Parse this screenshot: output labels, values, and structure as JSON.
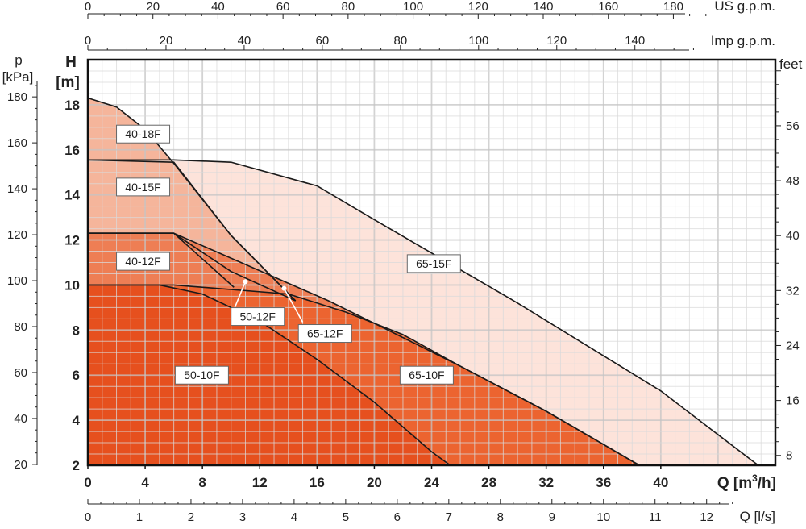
{
  "chart_data": {
    "type": "area",
    "x_unit_label": "Q [m³/h]",
    "y_unit_label": "H [m]",
    "xlim": [
      0,
      48
    ],
    "ylim": [
      2,
      20
    ],
    "x_ticks": [
      0,
      4,
      8,
      12,
      16,
      20,
      24,
      28,
      32,
      36,
      40
    ],
    "y_ticks": [
      2,
      4,
      6,
      8,
      10,
      12,
      14,
      16,
      18
    ],
    "secondary_axes": {
      "us_gpm": {
        "label": "US g.p.m.",
        "ticks": [
          0,
          20,
          40,
          60,
          80,
          100,
          120,
          140,
          160,
          180
        ]
      },
      "imp_gpm": {
        "label": "Imp g.p.m.",
        "ticks": [
          0,
          20,
          40,
          60,
          80,
          100,
          120,
          140
        ]
      },
      "ls": {
        "label": "Q [l/s]",
        "ticks": [
          0,
          1,
          2,
          3,
          4,
          5,
          6,
          7,
          8,
          9,
          10,
          11,
          12
        ]
      },
      "kpa": {
        "label_p": "p",
        "label_unit": "[kPa]",
        "ticks": [
          20,
          40,
          60,
          80,
          100,
          120,
          140,
          160,
          180
        ]
      },
      "feet": {
        "label": "feet",
        "ticks": [
          8,
          16,
          24,
          32,
          40,
          48,
          56
        ]
      }
    },
    "grid": true,
    "series": [
      {
        "name": "65-15F",
        "color": "#fde3da",
        "x": [
          0,
          6,
          10,
          16,
          20,
          30,
          40,
          46.8
        ],
        "y": [
          15.55,
          15.55,
          15.45,
          14.4,
          12.9,
          9.2,
          5.3,
          2
        ]
      },
      {
        "name": "40-18F",
        "color": "#f5b59b",
        "x": [
          0,
          2,
          4,
          6,
          10,
          14.5
        ],
        "y": [
          18.3,
          17.9,
          16.9,
          15.4,
          12.2,
          9.3
        ]
      },
      {
        "name": "40-15F",
        "color": "#f5b59b",
        "x": [
          0,
          6,
          10,
          14.5
        ],
        "y": [
          15.55,
          15.45,
          12.2,
          9.3
        ]
      },
      {
        "name": "65-12F",
        "color": "#ee7e54",
        "x": [
          0,
          6,
          16.8,
          20,
          26,
          32,
          38.5
        ],
        "y": [
          12.3,
          12.3,
          9.3,
          8.3,
          6.4,
          4.4,
          2
        ]
      },
      {
        "name": "40-12F",
        "color": "#ee7e54",
        "x": [
          0,
          6,
          10,
          14.5
        ],
        "y": [
          12.3,
          12.3,
          10.6,
          9.3
        ]
      },
      {
        "name": "50-12F",
        "color": "#ee7e54",
        "x": [
          0,
          6,
          10.2
        ],
        "y": [
          12.3,
          12.3,
          9.9
        ]
      },
      {
        "name": "65-10F",
        "color": "#ec6430",
        "x": [
          0,
          6,
          14,
          18,
          22,
          26,
          32,
          38.5
        ],
        "y": [
          10,
          10,
          9.6,
          8.8,
          7.8,
          6.4,
          4.4,
          2
        ]
      },
      {
        "name": "50-10F",
        "color": "#e6501e",
        "x": [
          0,
          5,
          8,
          12,
          16,
          20,
          24,
          25.3
        ],
        "y": [
          10,
          10,
          9.6,
          8.4,
          6.7,
          4.8,
          2.6,
          2
        ]
      }
    ],
    "labels": [
      {
        "text": "40-18F",
        "x": 2,
        "y": 16.7
      },
      {
        "text": "40-15F",
        "x": 2,
        "y": 14.35
      },
      {
        "text": "40-12F",
        "x": 2,
        "y": 11.05
      },
      {
        "text": "50-12F",
        "x": 10,
        "y": 8.6
      },
      {
        "text": "65-12F",
        "x": 14.7,
        "y": 7.85
      },
      {
        "text": "65-15F",
        "x": 22.3,
        "y": 10.95
      },
      {
        "text": "50-10F",
        "x": 6.1,
        "y": 6
      },
      {
        "text": "65-10F",
        "x": 21.8,
        "y": 6
      }
    ]
  }
}
